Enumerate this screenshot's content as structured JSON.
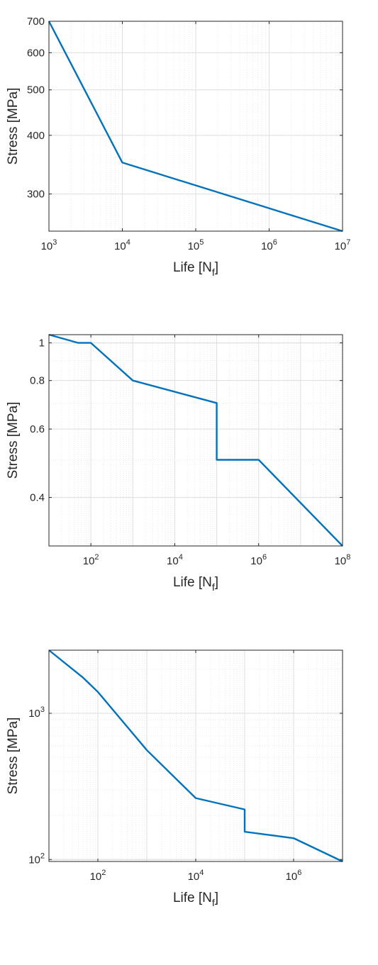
{
  "chart_data": [
    {
      "type": "line",
      "xscale": "log",
      "yscale": "log",
      "xlabel": "Life [N_f]",
      "ylabel": "Stress [MPa]",
      "xlim": [
        1000,
        10000000
      ],
      "ylim": [
        250,
        700
      ],
      "grid": true,
      "x_tick_labels": [
        "10^3",
        "10^4",
        "10^5",
        "10^6",
        "10^7"
      ],
      "y_tick_labels": [
        "300",
        "400",
        "500",
        "600",
        "700"
      ],
      "series": [
        {
          "x": [
            1000,
            10000,
            10000000
          ],
          "y": [
            700,
            350,
            250
          ]
        }
      ]
    },
    {
      "type": "line",
      "xscale": "log",
      "yscale": "log",
      "xlabel": "Life [N_f]",
      "ylabel": "Stress [MPa]",
      "xlim": [
        10,
        100000000
      ],
      "ylim": [
        0.3,
        1.05
      ],
      "grid": true,
      "x_tick_labels": [
        "10^2",
        "10^4",
        "10^6",
        "10^8"
      ],
      "y_tick_labels": [
        "0.4",
        "0.6",
        "0.8",
        "1"
      ],
      "series": [
        {
          "x": [
            10,
            50,
            100,
            1000,
            100000,
            100000,
            1000000,
            100000000
          ],
          "y": [
            1.05,
            1.0,
            1.0,
            0.8,
            0.7,
            0.5,
            0.5,
            0.3
          ]
        }
      ]
    },
    {
      "type": "line",
      "xscale": "log",
      "yscale": "log",
      "xlabel": "Life [N_f]",
      "ylabel": "Stress [MPa]",
      "xlim": [
        10,
        10000000
      ],
      "ylim": [
        97,
        2700
      ],
      "grid": true,
      "x_tick_labels": [
        "10^2",
        "10^4",
        "10^6"
      ],
      "y_tick_labels": [
        "10^2",
        "10^3"
      ],
      "series": [
        {
          "x": [
            10,
            50,
            100,
            1000,
            10000,
            100000,
            100000,
            1000000,
            10000000
          ],
          "y": [
            2700,
            1750,
            1400,
            560,
            263,
            220,
            155,
            140,
            97
          ]
        }
      ]
    }
  ]
}
